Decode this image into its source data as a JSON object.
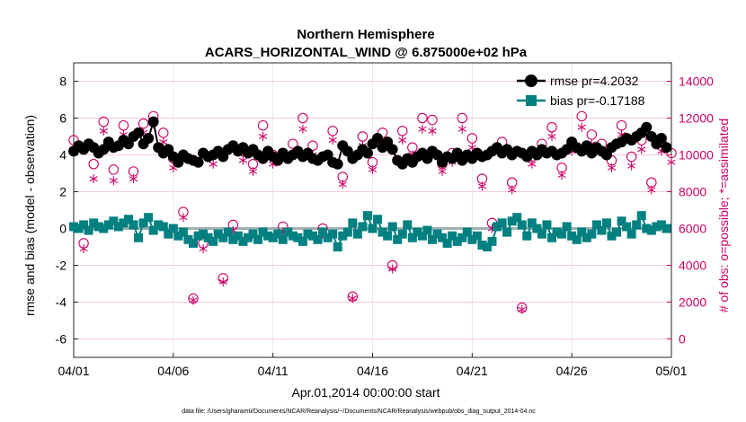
{
  "title_line1": "Northern Hemisphere",
  "title_line2": "ACARS_HORIZONTAL_WIND @ 6.875000e+02 hPa",
  "ylabel_left": "rmse and bias (model - observation)",
  "ylabel_right": "# of obs: o=possible; *=assimilated",
  "xlabel": "Apr.01,2014 00:00:00 start",
  "footer": "data file: /Users/gharamti/Documents/NCAR/Reanalysis/~/Documents/NCAR/Reanalysis/webpub/obs_diag_output_2014-04.nc",
  "colors": {
    "rmse": "#000000",
    "bias": "#008080",
    "obs": "#cc0066"
  },
  "chart_data": {
    "type": "line",
    "x_ticks": [
      0,
      5,
      10,
      15,
      20,
      25,
      30
    ],
    "x_tick_labels": [
      "04/01",
      "04/06",
      "04/11",
      "04/16",
      "04/21",
      "04/26",
      "05/01"
    ],
    "xlim": [
      0,
      30
    ],
    "ylim_left": [
      -7,
      9
    ],
    "y_ticks_left": [
      -6,
      -4,
      -2,
      0,
      2,
      4,
      6,
      8
    ],
    "ylim_right": [
      -1000,
      15000
    ],
    "y_ticks_right": [
      0,
      2000,
      4000,
      6000,
      8000,
      10000,
      12000,
      14000
    ],
    "legend": {
      "position": "top-right",
      "entries": [
        "rmse pr=4.2032",
        "bias pr=-0.17188"
      ]
    },
    "series": [
      {
        "name": "rmse pr=4.2032",
        "axis": "left",
        "x": [
          0.0,
          0.25,
          0.5,
          0.75,
          1.0,
          1.25,
          1.5,
          1.75,
          2.0,
          2.25,
          2.5,
          2.75,
          3.0,
          3.25,
          3.5,
          3.75,
          4.0,
          4.25,
          4.5,
          4.75,
          5.0,
          5.25,
          5.5,
          5.75,
          6.0,
          6.25,
          6.5,
          6.75,
          7.0,
          7.25,
          7.5,
          7.75,
          8.0,
          8.25,
          8.5,
          8.75,
          9.0,
          9.25,
          9.5,
          9.75,
          10.0,
          10.25,
          10.5,
          10.75,
          11.0,
          11.25,
          11.5,
          11.75,
          12.0,
          12.25,
          12.5,
          12.75,
          13.0,
          13.25,
          13.5,
          13.75,
          14.0,
          14.25,
          14.5,
          14.75,
          15.0,
          15.25,
          15.5,
          15.75,
          16.0,
          16.25,
          16.5,
          16.75,
          17.0,
          17.25,
          17.5,
          17.75,
          18.0,
          18.25,
          18.5,
          18.75,
          19.0,
          19.25,
          19.5,
          19.75,
          20.0,
          20.25,
          20.5,
          20.75,
          21.0,
          21.25,
          21.5,
          21.75,
          22.0,
          22.25,
          22.5,
          22.75,
          23.0,
          23.25,
          23.5,
          23.75,
          24.0,
          24.25,
          24.5,
          24.75,
          25.0,
          25.25,
          25.5,
          25.75,
          26.0,
          26.25,
          26.5,
          26.75,
          27.0,
          27.25,
          27.5,
          27.75,
          28.0,
          28.25,
          28.5,
          28.75,
          29.0,
          29.25,
          29.5,
          29.75
        ],
        "values": [
          4.2,
          4.5,
          4.3,
          4.6,
          4.4,
          4.1,
          4.3,
          4.7,
          4.4,
          4.5,
          4.8,
          4.6,
          5.0,
          5.2,
          4.6,
          4.9,
          5.8,
          4.4,
          4.1,
          4.3,
          3.9,
          3.6,
          4.0,
          3.8,
          3.7,
          3.6,
          4.1,
          3.9,
          4.0,
          4.2,
          3.9,
          4.3,
          4.5,
          4.2,
          4.4,
          4.1,
          4.3,
          4.0,
          3.8,
          4.2,
          3.9,
          3.7,
          4.1,
          3.8,
          4.0,
          4.2,
          3.9,
          4.1,
          3.8,
          3.7,
          3.9,
          4.0,
          3.6,
          3.5,
          4.5,
          4.2,
          3.8,
          4.0,
          4.3,
          4.1,
          4.6,
          4.9,
          4.4,
          4.7,
          4.3,
          3.7,
          3.5,
          3.8,
          3.6,
          3.9,
          4.1,
          3.8,
          4.2,
          4.0,
          3.6,
          3.9,
          3.8,
          4.1,
          3.7,
          4.0,
          3.8,
          4.1,
          3.9,
          4.0,
          4.2,
          4.4,
          4.1,
          4.3,
          4.0,
          4.2,
          4.1,
          3.9,
          4.2,
          4.0,
          4.3,
          4.1,
          4.2,
          4.0,
          4.1,
          4.3,
          4.7,
          4.4,
          4.2,
          4.5,
          4.1,
          4.4,
          4.2,
          4.0,
          4.4,
          4.6,
          4.7,
          4.9,
          4.8,
          5.0,
          5.2,
          5.5,
          5.0,
          4.6,
          4.9,
          4.4
        ]
      },
      {
        "name": "bias pr=-0.17188",
        "axis": "left",
        "x": [
          0.0,
          0.25,
          0.5,
          0.75,
          1.0,
          1.25,
          1.5,
          1.75,
          2.0,
          2.25,
          2.5,
          2.75,
          3.0,
          3.25,
          3.5,
          3.75,
          4.0,
          4.25,
          4.5,
          4.75,
          5.0,
          5.25,
          5.5,
          5.75,
          6.0,
          6.25,
          6.5,
          6.75,
          7.0,
          7.25,
          7.5,
          7.75,
          8.0,
          8.25,
          8.5,
          8.75,
          9.0,
          9.25,
          9.5,
          9.75,
          10.0,
          10.25,
          10.5,
          10.75,
          11.0,
          11.25,
          11.5,
          11.75,
          12.0,
          12.25,
          12.5,
          12.75,
          13.0,
          13.25,
          13.5,
          13.75,
          14.0,
          14.25,
          14.5,
          14.75,
          15.0,
          15.25,
          15.5,
          15.75,
          16.0,
          16.25,
          16.5,
          16.75,
          17.0,
          17.25,
          17.5,
          17.75,
          18.0,
          18.25,
          18.5,
          18.75,
          19.0,
          19.25,
          19.5,
          19.75,
          20.0,
          20.25,
          20.5,
          20.75,
          21.0,
          21.25,
          21.5,
          21.75,
          22.0,
          22.25,
          22.5,
          22.75,
          23.0,
          23.25,
          23.5,
          23.75,
          24.0,
          24.25,
          24.5,
          24.75,
          25.0,
          25.25,
          25.5,
          25.75,
          26.0,
          26.25,
          26.5,
          26.75,
          27.0,
          27.25,
          27.5,
          27.75,
          28.0,
          28.25,
          28.5,
          28.75,
          29.0,
          29.25,
          29.5,
          29.75
        ],
        "values": [
          0.1,
          0.0,
          0.2,
          -0.1,
          0.3,
          0.1,
          0.0,
          0.2,
          0.4,
          0.1,
          0.3,
          0.5,
          0.2,
          -0.5,
          0.3,
          0.6,
          -0.1,
          0.2,
          0.1,
          -0.3,
          0.0,
          -0.4,
          -0.2,
          -0.6,
          -0.8,
          -0.4,
          -0.3,
          -0.5,
          -0.7,
          -0.3,
          -0.5,
          -0.2,
          -0.6,
          -0.4,
          -0.7,
          -0.5,
          -0.3,
          -0.6,
          -0.2,
          -0.4,
          -0.5,
          -0.3,
          -0.6,
          -0.2,
          -0.4,
          -0.5,
          -0.7,
          -0.3,
          -0.4,
          -0.6,
          -0.2,
          -0.5,
          -0.3,
          -1.0,
          -0.4,
          -0.2,
          0.3,
          -0.3,
          0.1,
          0.7,
          0.0,
          0.5,
          -0.2,
          -0.4,
          0.1,
          -0.6,
          -0.3,
          0.2,
          -0.5,
          -0.2,
          -0.4,
          -0.1,
          -0.6,
          -0.3,
          -0.5,
          -0.8,
          -0.4,
          -0.7,
          -0.5,
          -0.2,
          -0.6,
          -0.4,
          -0.9,
          -1.0,
          -0.7,
          0.1,
          0.3,
          -0.2,
          0.4,
          0.6,
          0.2,
          -0.4,
          0.3,
          0.0,
          -0.3,
          0.2,
          -0.5,
          -0.2,
          -0.3,
          0.1,
          -0.4,
          -0.6,
          -0.2,
          -0.5,
          -0.3,
          0.2,
          -0.1,
          0.3,
          -0.4,
          -0.2,
          0.4,
          0.1,
          -0.3,
          0.2,
          0.7,
          0.0,
          -0.1,
          0.1,
          0.2,
          0.0
        ]
      },
      {
        "name": "possible obs (o)",
        "axis": "right",
        "x": [
          0.0,
          0.5,
          1.0,
          1.5,
          2.0,
          2.5,
          3.0,
          3.5,
          4.0,
          4.5,
          5.0,
          5.5,
          6.0,
          6.5,
          7.0,
          7.5,
          8.0,
          8.5,
          9.0,
          9.5,
          10.0,
          10.5,
          11.0,
          11.5,
          12.0,
          12.5,
          13.0,
          13.5,
          14.0,
          14.5,
          15.0,
          15.5,
          16.0,
          16.5,
          17.0,
          17.5,
          18.0,
          18.5,
          19.0,
          19.5,
          20.0,
          20.5,
          21.0,
          21.5,
          22.0,
          22.5,
          23.0,
          23.5,
          24.0,
          24.5,
          25.0,
          25.5,
          26.0,
          26.5,
          27.0,
          27.5,
          28.0,
          28.5,
          29.0,
          29.5,
          30.0
        ],
        "values": [
          10800,
          5200,
          9500,
          11800,
          9200,
          11600,
          9100,
          11700,
          12100,
          11200,
          9800,
          6900,
          2200,
          5200,
          10000,
          3300,
          6200,
          10200,
          9500,
          11600,
          10000,
          6100,
          10600,
          12000,
          10500,
          6000,
          11300,
          8800,
          2300,
          11000,
          9600,
          11200,
          4000,
          11300,
          10400,
          12000,
          11900,
          9500,
          10100,
          12000,
          10900,
          8700,
          6300,
          10700,
          8500,
          1700,
          9900,
          10600,
          11500,
          9300,
          10700,
          12100,
          11100,
          10600,
          9700,
          11600,
          9900,
          10800,
          8500,
          10700,
          10100
        ]
      },
      {
        "name": "assimilated obs (*)",
        "axis": "right",
        "x": [
          0.0,
          0.5,
          1.0,
          1.5,
          2.0,
          2.5,
          3.0,
          3.5,
          4.0,
          4.5,
          5.0,
          5.5,
          6.0,
          6.5,
          7.0,
          7.5,
          8.0,
          8.5,
          9.0,
          9.5,
          10.0,
          10.5,
          11.0,
          11.5,
          12.0,
          12.5,
          13.0,
          13.5,
          14.0,
          14.5,
          15.0,
          15.5,
          16.0,
          16.5,
          17.0,
          17.5,
          18.0,
          18.5,
          19.0,
          19.5,
          20.0,
          20.5,
          21.0,
          21.5,
          22.0,
          22.5,
          23.0,
          23.5,
          24.0,
          24.5,
          25.0,
          25.5,
          26.0,
          26.5,
          27.0,
          27.5,
          28.0,
          28.5,
          29.0,
          29.5,
          30.0
        ],
        "values": [
          10300,
          4900,
          8700,
          11300,
          8600,
          11100,
          8700,
          11200,
          11700,
          10700,
          9300,
          6600,
          2100,
          4900,
          9500,
          3100,
          5900,
          9700,
          9100,
          11000,
          9500,
          5800,
          10100,
          11400,
          10000,
          5700,
          10800,
          8400,
          2200,
          10500,
          9200,
          10700,
          3800,
          10800,
          10000,
          11400,
          11300,
          9100,
          9600,
          11400,
          10400,
          8300,
          6000,
          10200,
          8100,
          1600,
          9500,
          10100,
          11000,
          8900,
          10200,
          11500,
          10600,
          10100,
          9300,
          11100,
          9400,
          10300,
          8100,
          10200,
          9600
        ]
      }
    ]
  }
}
